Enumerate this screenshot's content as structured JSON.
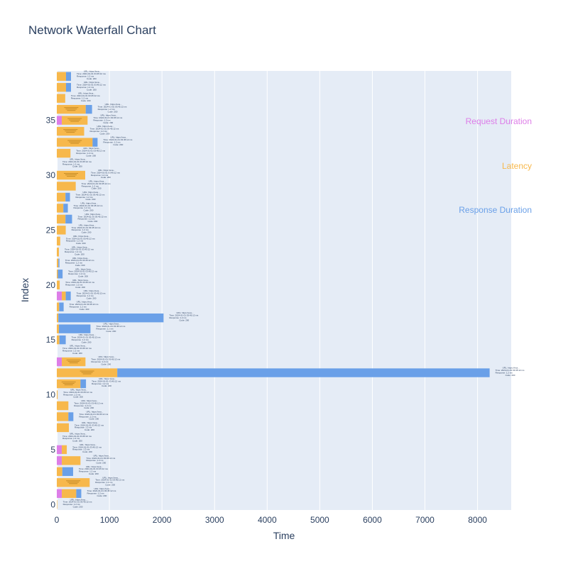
{
  "chart_data": {
    "type": "bar",
    "orientation": "horizontal",
    "barmode": "stack",
    "title": "Network Waterfall Chart",
    "xlabel": "Time",
    "ylabel": "Index",
    "xlim": [
      0,
      8640
    ],
    "ylim": [
      -0.5,
      39.5
    ],
    "x_ticks": [
      0,
      1000,
      2000,
      3000,
      4000,
      5000,
      6000,
      7000,
      8000
    ],
    "y_ticks": [
      0,
      5,
      10,
      15,
      20,
      25,
      30,
      35
    ],
    "grid": true,
    "legend_position": "right",
    "series": [
      {
        "name": "Request Duration",
        "color": "#dd7ee8",
        "values": [
          0,
          95,
          0,
          0,
          95,
          95,
          0,
          0,
          0,
          0,
          0,
          0,
          0,
          95,
          0,
          0,
          0,
          0,
          0,
          95,
          0,
          0,
          0,
          0,
          0,
          0,
          0,
          0,
          0,
          0,
          0,
          0,
          0,
          0,
          0,
          95,
          0,
          0,
          0,
          0
        ]
      },
      {
        "name": "Latency",
        "color": "#f7b84c",
        "values": [
          8,
          275,
          625,
          105,
          355,
          95,
          0,
          230,
          220,
          220,
          15,
          450,
          1150,
          450,
          0,
          50,
          40,
          30,
          45,
          75,
          55,
          20,
          30,
          40,
          65,
          170,
          165,
          125,
          165,
          360,
          540,
          0,
          260,
          680,
          520,
          490,
          550,
          160,
          175,
          175
        ]
      },
      {
        "name": "Response Duration",
        "color": "#6aa0e8",
        "values": [
          0,
          95,
          0,
          205,
          0,
          0,
          0,
          0,
          95,
          0,
          0,
          105,
          7080,
          0,
          0,
          120,
          600,
          2000,
          85,
          95,
          0,
          90,
          20,
          0,
          0,
          0,
          125,
          85,
          85,
          0,
          0,
          0,
          0,
          95,
          0,
          0,
          120,
          0,
          95,
          95
        ]
      }
    ],
    "point_label_lines": [
      "URL: https://exa...",
      "Time: 2024-01-01 03:45:12 ms",
      "Response: 1.2 ms",
      "Code: 200"
    ]
  }
}
